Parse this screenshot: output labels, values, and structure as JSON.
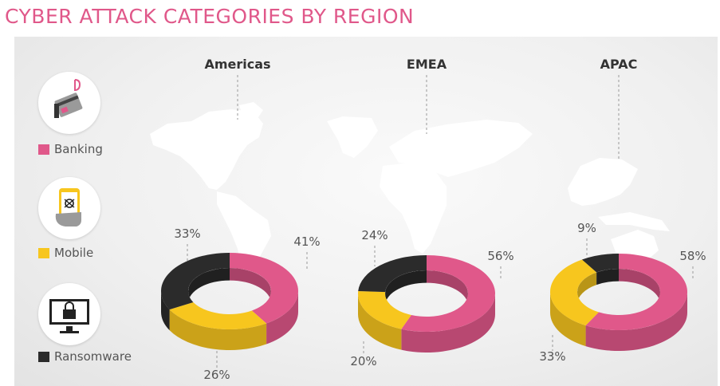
{
  "title": "CYBER ATTACK CATEGORIES BY REGION",
  "colors": {
    "banking": "#e0588a",
    "mobile": "#f7c61e",
    "ransomware": "#2b2b2b",
    "title": "#e0588a"
  },
  "legend": [
    {
      "label": "Banking",
      "color": "#e0588a",
      "icon": "credit-card-phishing-hook-icon"
    },
    {
      "label": "Mobile",
      "color": "#f7c61e",
      "icon": "smartphone-bug-icon"
    },
    {
      "label": "Ransomware",
      "color": "#2b2b2b",
      "icon": "monitor-padlock-icon"
    }
  ],
  "chart_data": {
    "type": "pie",
    "categories": [
      "Banking",
      "Mobile",
      "Ransomware"
    ],
    "series": [
      {
        "name": "Americas",
        "values": [
          41,
          26,
          33
        ],
        "labels": [
          "41%",
          "26%",
          "33%"
        ]
      },
      {
        "name": "EMEA",
        "values": [
          56,
          20,
          24
        ],
        "labels": [
          "56%",
          "20%",
          "24%"
        ]
      },
      {
        "name": "APAC",
        "values": [
          58,
          33,
          9
        ],
        "labels": [
          "58%",
          "33%",
          "9%"
        ]
      }
    ]
  }
}
